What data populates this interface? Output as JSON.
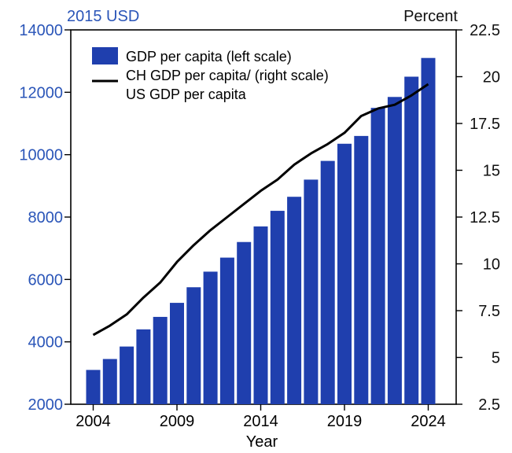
{
  "chart_data": {
    "type": "bar",
    "title": "",
    "left_unit_label": "2015 USD",
    "right_unit_label": "Percent",
    "xlabel": "Year",
    "ylim_left": [
      2000,
      14000
    ],
    "ylim_right": [
      2.5,
      22.5
    ],
    "x_ticks": [
      "2004",
      "2009",
      "2014",
      "2019",
      "2024"
    ],
    "y_ticks_left": [
      "2000",
      "4000",
      "6000",
      "8000",
      "10000",
      "12000",
      "14000"
    ],
    "y_ticks_right": [
      "2.5",
      "5",
      "7.5",
      "10",
      "12.5",
      "15",
      "17.5",
      "20",
      "22.5"
    ],
    "years": [
      2004,
      2005,
      2006,
      2007,
      2008,
      2009,
      2010,
      2011,
      2012,
      2013,
      2014,
      2015,
      2016,
      2017,
      2018,
      2019,
      2020,
      2021,
      2022,
      2023,
      2024
    ],
    "series": [
      {
        "name": "GDP per capita (left scale)",
        "kind": "bar",
        "axis": "left",
        "color": "#1f3fae",
        "values": [
          3100,
          3450,
          3850,
          4400,
          4800,
          5250,
          5750,
          6250,
          6700,
          7200,
          7700,
          8200,
          8650,
          9200,
          9800,
          10350,
          10600,
          11500,
          11850,
          12500,
          13100
        ]
      },
      {
        "name": "CH GDP per capita/ US GDP per capita (right scale)",
        "kind": "line",
        "axis": "right",
        "color": "#000000",
        "values": [
          6.2,
          6.7,
          7.3,
          8.2,
          9.0,
          10.1,
          11.0,
          11.8,
          12.5,
          13.2,
          13.9,
          14.5,
          15.3,
          15.9,
          16.4,
          17.0,
          17.9,
          18.3,
          18.5,
          19.0,
          19.6
        ]
      }
    ],
    "legend": {
      "placement": "top-left",
      "bar_label": "GDP per capita (left scale)",
      "line_label_1": "CH GDP per capita/  (right scale)",
      "line_label_2": "US GDP per capita"
    },
    "colors": {
      "left_axis_text": "#2a55b8",
      "right_axis_text": "#111111",
      "bar": "#1f3fae",
      "line": "#000000"
    },
    "grid": false
  }
}
